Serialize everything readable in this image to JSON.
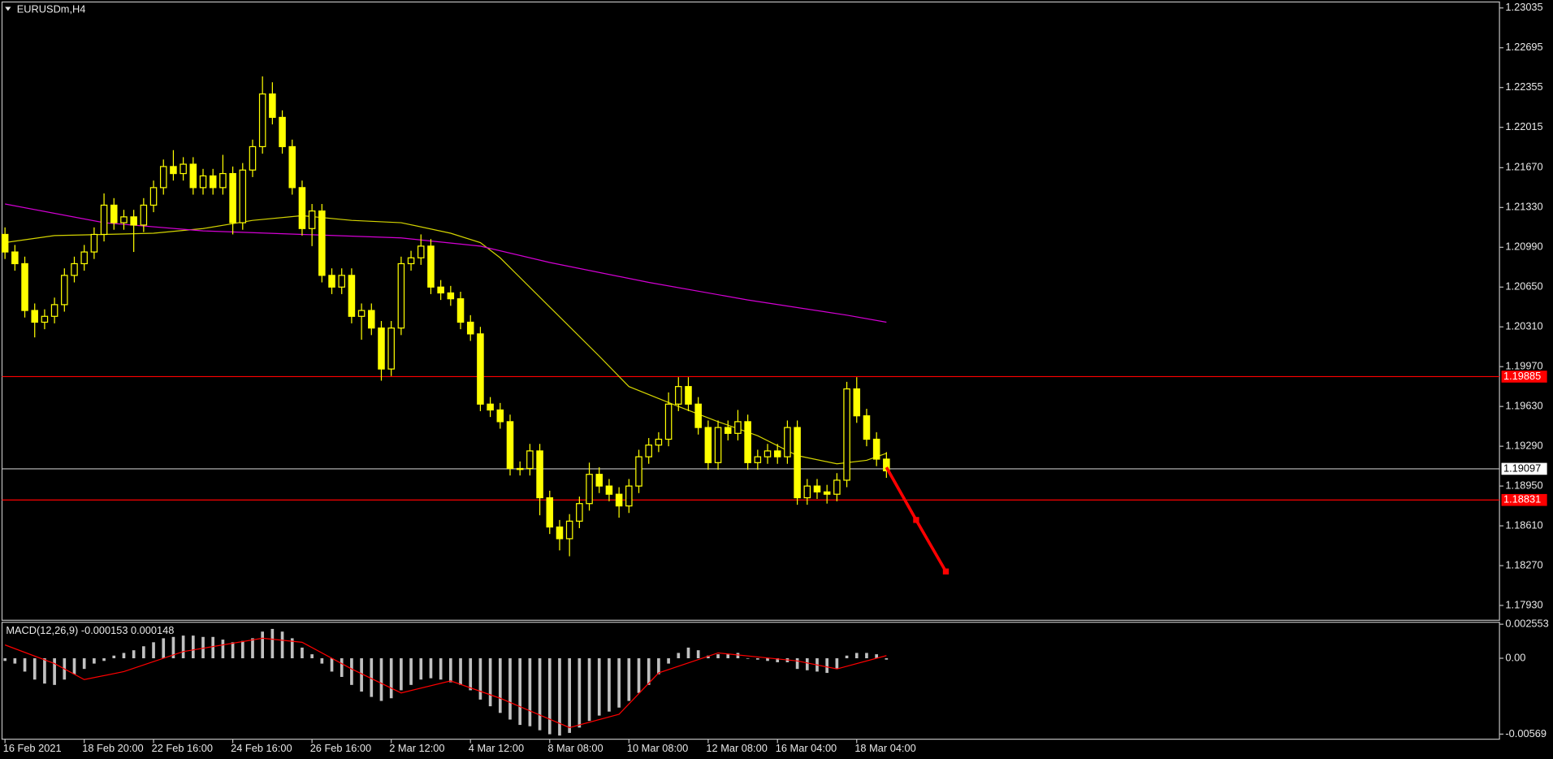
{
  "chart_data": {
    "type": "candlestick",
    "title": "EURUSDm,H4",
    "xlim": [
      -0.3,
      150.9
    ],
    "ylim": [
      1.17803,
      1.23086
    ],
    "yticks": [
      1.23035,
      1.22695,
      1.22355,
      1.22015,
      {
        "value": 1.2167,
        "label": "1.21670"
      },
      {
        "value": 1.2133,
        "label": "1.21330"
      },
      {
        "value": 1.2099,
        "label": "1.20990"
      },
      {
        "value": 1.2065,
        "label": "1.20650"
      },
      {
        "value": 1.2031,
        "label": "1.20310"
      },
      {
        "value": 1.1997,
        "label": "1.19970"
      },
      {
        "value": 1.1963,
        "label": "1.19630"
      },
      {
        "value": 1.1929,
        "label": "1.19290"
      },
      {
        "value": 1.1895,
        "label": "1.18950"
      },
      {
        "value": 1.1861,
        "label": "1.18610"
      },
      {
        "value": 1.1827,
        "label": "1.18270"
      },
      {
        "value": 1.1793,
        "label": "1.17930"
      }
    ],
    "xticks": [
      {
        "value": 0,
        "label": "16 Feb 2021"
      },
      {
        "value": 8,
        "label": "18 Feb 20:00"
      },
      {
        "value": 15,
        "label": "22 Feb 16:00"
      },
      {
        "value": 23,
        "label": "24 Feb 16:00"
      },
      {
        "value": 31,
        "label": "26 Feb 16:00"
      },
      {
        "value": 39,
        "label": "2 Mar 12:00"
      },
      {
        "value": 47,
        "label": "4 Mar 12:00"
      },
      {
        "value": 55,
        "label": "8 Mar 08:00"
      },
      {
        "value": 63,
        "label": "10 Mar 08:00"
      },
      {
        "value": 71,
        "label": "12 Mar 08:00"
      },
      {
        "value": 78,
        "label": "16 Mar 04:00"
      },
      {
        "value": 86,
        "label": "18 Mar 04:00"
      }
    ],
    "bull_color": "#ffff00",
    "bear_color": "#ffff00",
    "open": [
      1.211,
      1.2095,
      1.2085,
      1.2045,
      1.2035,
      1.204,
      1.205,
      1.2075,
      1.2085,
      1.2095,
      1.211,
      1.2135,
      1.212,
      1.2125,
      1.2118,
      1.2135,
      1.215,
      1.2168,
      1.2162,
      1.217,
      1.215,
      1.216,
      1.215,
      1.2162,
      1.212,
      1.2165,
      1.2185,
      1.223,
      1.221,
      1.2185,
      1.215,
      1.2115,
      1.213,
      1.2075,
      1.2065,
      1.2075,
      1.204,
      1.2045,
      1.203,
      1.1995,
      1.203,
      1.2085,
      1.209,
      1.21,
      1.2065,
      1.206,
      1.2055,
      1.2035,
      1.2025,
      1.1965,
      1.196,
      1.195,
      1.191,
      1.191,
      1.1925,
      1.1885,
      1.186,
      1.185,
      1.1865,
      1.188,
      1.1905,
      1.1895,
      1.1888,
      1.1878,
      1.1895,
      1.192,
      1.193,
      1.1935,
      1.1965,
      1.198,
      1.1965,
      1.1945,
      1.1915,
      1.1945,
      1.194,
      1.195,
      1.1915,
      1.192,
      1.1925,
      1.192,
      1.1945,
      1.1885,
      1.1895,
      1.189,
      1.1888,
      1.19,
      1.1978,
      1.1955,
      1.1935,
      1.1918
    ],
    "high": [
      1.2116,
      1.2101,
      1.2091,
      1.2051,
      1.2046,
      1.2056,
      1.2081,
      1.2091,
      1.2101,
      1.2116,
      1.2145,
      1.2141,
      1.2131,
      1.2131,
      1.2141,
      1.2156,
      1.2174,
      1.2182,
      1.2176,
      1.2176,
      1.2166,
      1.2166,
      1.2178,
      1.2168,
      1.2171,
      1.2191,
      1.2245,
      1.224,
      1.2216,
      1.2191,
      1.2156,
      1.2136,
      1.2136,
      1.2081,
      1.2081,
      1.2081,
      1.2051,
      1.2051,
      1.2036,
      1.2036,
      1.2091,
      1.2096,
      1.211,
      1.2106,
      1.2071,
      1.2066,
      1.2061,
      1.2041,
      1.2031,
      1.1971,
      1.1966,
      1.1956,
      1.1916,
      1.1931,
      1.1931,
      1.1891,
      1.1866,
      1.1871,
      1.1886,
      1.1915,
      1.1911,
      1.1901,
      1.1894,
      1.1901,
      1.1926,
      1.1936,
      1.1941,
      1.1975,
      1.1988,
      1.1988,
      1.1971,
      1.1951,
      1.1951,
      1.1951,
      1.196,
      1.1956,
      1.1926,
      1.1931,
      1.1931,
      1.1951,
      1.1951,
      1.1901,
      1.1901,
      1.1896,
      1.1906,
      1.1984,
      1.1988,
      1.1961,
      1.1941,
      1.1924
    ],
    "low": [
      1.2089,
      1.2079,
      1.2039,
      1.2022,
      1.2029,
      1.2034,
      1.2044,
      1.2069,
      1.2079,
      1.2089,
      1.2104,
      1.2114,
      1.2114,
      1.2095,
      1.2112,
      1.2129,
      1.2144,
      1.2156,
      1.2156,
      1.2144,
      1.2144,
      1.2144,
      1.2144,
      1.211,
      1.2114,
      1.2159,
      1.2179,
      1.2204,
      1.2179,
      1.2144,
      1.2109,
      1.21,
      1.2069,
      1.2059,
      1.2059,
      1.2034,
      1.202,
      1.2024,
      1.1985,
      1.1989,
      1.2024,
      1.2079,
      1.2084,
      1.2059,
      1.2054,
      1.2049,
      1.2029,
      1.2019,
      1.1959,
      1.1954,
      1.1944,
      1.1904,
      1.1904,
      1.1904,
      1.187,
      1.1854,
      1.184,
      1.1835,
      1.1859,
      1.1874,
      1.1889,
      1.1882,
      1.1868,
      1.1872,
      1.1889,
      1.1914,
      1.1924,
      1.1929,
      1.1959,
      1.1959,
      1.1939,
      1.1909,
      1.1909,
      1.1934,
      1.1934,
      1.1909,
      1.1909,
      1.1914,
      1.1914,
      1.1914,
      1.1879,
      1.1879,
      1.1884,
      1.188,
      1.1882,
      1.1894,
      1.1949,
      1.1929,
      1.1912,
      1.1902
    ],
    "close": [
      1.2095,
      1.2085,
      1.2045,
      1.2035,
      1.204,
      1.205,
      1.2075,
      1.2085,
      1.2095,
      1.211,
      1.2135,
      1.212,
      1.2125,
      1.2118,
      1.2135,
      1.215,
      1.2168,
      1.2162,
      1.217,
      1.215,
      1.216,
      1.215,
      1.2162,
      1.212,
      1.2165,
      1.2185,
      1.223,
      1.221,
      1.2185,
      1.215,
      1.2115,
      1.213,
      1.2075,
      1.2065,
      1.2075,
      1.204,
      1.2045,
      1.203,
      1.1995,
      1.203,
      1.2085,
      1.209,
      1.21,
      1.2065,
      1.206,
      1.2055,
      1.2035,
      1.2025,
      1.1965,
      1.196,
      1.195,
      1.191,
      1.191,
      1.1925,
      1.1885,
      1.186,
      1.185,
      1.1865,
      1.188,
      1.1905,
      1.1895,
      1.1888,
      1.1878,
      1.1895,
      1.192,
      1.193,
      1.1935,
      1.1965,
      1.198,
      1.1965,
      1.1945,
      1.1915,
      1.1945,
      1.194,
      1.195,
      1.1915,
      1.192,
      1.1925,
      1.192,
      1.1945,
      1.1885,
      1.1895,
      1.189,
      1.1888,
      1.19,
      1.1978,
      1.1955,
      1.1935,
      1.1918,
      1.1908
    ],
    "overlays": [
      {
        "color": "#d4d400",
        "x": [
          0,
          5,
          10,
          15,
          20,
          25,
          30,
          35,
          40,
          45,
          48,
          50,
          55,
          60,
          63,
          68,
          72,
          76,
          80,
          84,
          87,
          89
        ],
        "values": [
          1.2103,
          1.2109,
          1.211,
          1.2111,
          1.2115,
          1.2122,
          1.2126,
          1.2122,
          1.212,
          1.2111,
          1.2103,
          1.209,
          1.2048,
          1.2006,
          1.198,
          1.1963,
          1.195,
          1.1938,
          1.1921,
          1.1914,
          1.1917,
          1.1923
        ]
      },
      {
        "color": "#d400d4",
        "x": [
          0,
          10,
          20,
          30,
          40,
          48,
          55,
          65,
          75,
          85,
          89
        ],
        "values": [
          1.2136,
          1.212,
          1.2113,
          1.211,
          1.2107,
          1.21,
          1.2086,
          1.2069,
          1.2054,
          1.2041,
          1.2035
        ]
      }
    ],
    "levels": [
      {
        "value": 1.19885,
        "color": "#ff0000"
      },
      {
        "value": 1.19097,
        "color": "#c0c0c0"
      },
      {
        "value": 1.18831,
        "color": "#ff0000"
      }
    ],
    "forecast": {
      "color": "#ff0000",
      "x": [
        89,
        92,
        95
      ],
      "values": [
        1.1911,
        1.1866,
        1.1822
      ]
    },
    "indicator": {
      "type": "macd",
      "label": "MACD(12,26,9) -0.000153 0.000148",
      "ylim": [
        -0.00607,
        0.0027
      ],
      "yticks": [
        0.002553,
        {
          "value": 0,
          "label": "0.00"
        },
        -0.00569
      ],
      "hist_color": "#c0c0c0",
      "histogram": [
        -0.0002,
        -0.0004,
        -0.001,
        -0.0016,
        -0.0019,
        -0.002,
        -0.0016,
        -0.0012,
        -0.0008,
        -0.0004,
        -0.0002,
        0.0002,
        0.0004,
        0.0006,
        0.0009,
        0.0012,
        0.0015,
        0.0016,
        0.0017,
        0.0017,
        0.0016,
        0.0016,
        0.0014,
        0.0012,
        0.0013,
        0.0015,
        0.002,
        0.0022,
        0.002,
        0.0015,
        0.0008,
        0.0003,
        -0.0004,
        -0.001,
        -0.0014,
        -0.002,
        -0.0025,
        -0.0029,
        -0.0032,
        -0.003,
        -0.0024,
        -0.002,
        -0.0016,
        -0.0015,
        -0.0016,
        -0.0018,
        -0.002,
        -0.0024,
        -0.0031,
        -0.0036,
        -0.0041,
        -0.0046,
        -0.005,
        -0.0051,
        -0.0054,
        -0.0057,
        -0.0058,
        -0.0056,
        -0.0052,
        -0.0047,
        -0.0043,
        -0.004,
        -0.0037,
        -0.0032,
        -0.0026,
        -0.002,
        -0.0012,
        -0.0004,
        0.0004,
        0.0008,
        0.0006,
        0.0002,
        0.0003,
        0.0003,
        0.0004,
        0,
        -0.0001,
        -0.0002,
        -0.0003,
        -0.0003,
        -0.0008,
        -0.0009,
        -0.001,
        -0.0011,
        -0.0008,
        0.0002,
        0.0004,
        0.0004,
        0.0003,
        -0.0001
      ],
      "signal": {
        "color": "#ff0000",
        "x": [
          0,
          5,
          8,
          12,
          18,
          26,
          30,
          35,
          40,
          45,
          50,
          57,
          62,
          66,
          72,
          80,
          84,
          89
        ],
        "values": [
          0.001,
          -0.0004,
          -0.0016,
          -0.001,
          0.0005,
          0.0015,
          0.0012,
          -0.0008,
          -0.0026,
          -0.0017,
          -0.003,
          -0.0052,
          -0.0042,
          -0.0011,
          0.0004,
          -0.0002,
          -0.0008,
          0.0002
        ]
      }
    }
  }
}
